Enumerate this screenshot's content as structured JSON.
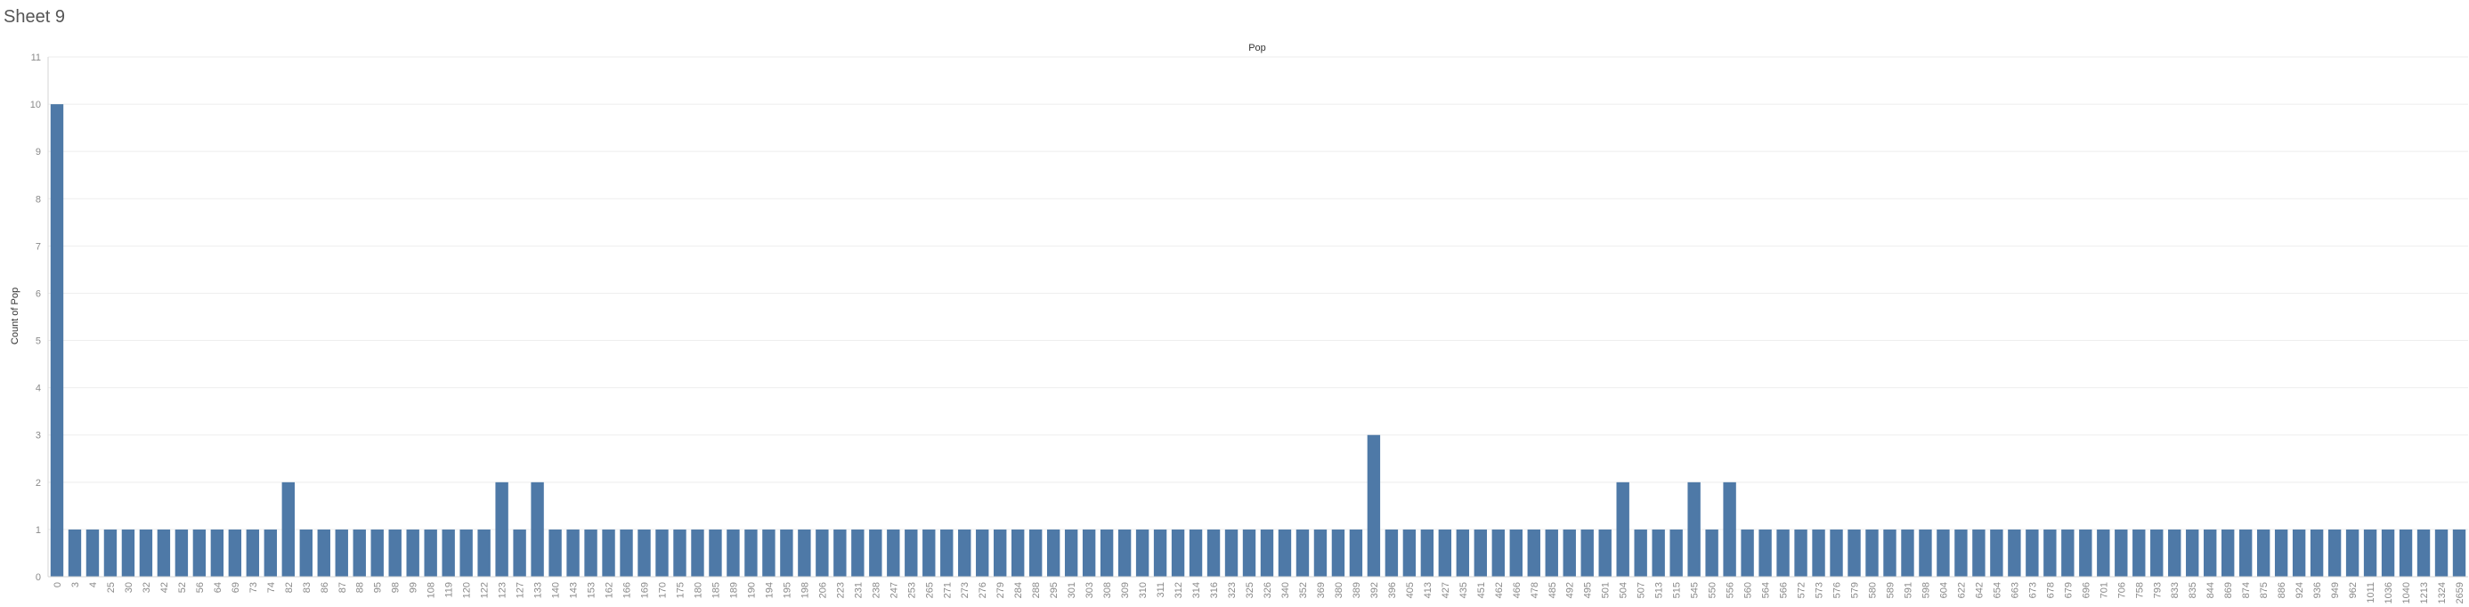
{
  "sheet": {
    "title": "Sheet 9"
  },
  "colors": {
    "bar": "#4e79a7",
    "grid": "#eeeeee",
    "axis": "#d6d6d6"
  },
  "chart_data": {
    "type": "bar",
    "title": "Pop",
    "xlabel": "",
    "ylabel": "Count of Pop",
    "ylim": [
      0,
      11
    ],
    "yticks": [
      0,
      1,
      2,
      3,
      4,
      5,
      6,
      7,
      8,
      9,
      10,
      11
    ],
    "grid": true,
    "categories": [
      "0",
      "3",
      "4",
      "25",
      "30",
      "32",
      "42",
      "52",
      "56",
      "64",
      "69",
      "73",
      "74",
      "82",
      "83",
      "86",
      "87",
      "88",
      "95",
      "98",
      "99",
      "108",
      "119",
      "120",
      "122",
      "123",
      "127",
      "133",
      "140",
      "143",
      "153",
      "162",
      "166",
      "169",
      "170",
      "175",
      "180",
      "185",
      "189",
      "190",
      "194",
      "195",
      "198",
      "206",
      "223",
      "231",
      "238",
      "247",
      "253",
      "265",
      "271",
      "273",
      "276",
      "279",
      "284",
      "288",
      "295",
      "301",
      "303",
      "308",
      "309",
      "310",
      "311",
      "312",
      "314",
      "316",
      "323",
      "325",
      "326",
      "340",
      "352",
      "369",
      "380",
      "389",
      "392",
      "396",
      "405",
      "413",
      "427",
      "435",
      "451",
      "462",
      "466",
      "478",
      "485",
      "492",
      "495",
      "501",
      "504",
      "507",
      "513",
      "515",
      "545",
      "550",
      "556",
      "560",
      "564",
      "566",
      "572",
      "573",
      "576",
      "579",
      "580",
      "589",
      "591",
      "598",
      "604",
      "622",
      "642",
      "654",
      "663",
      "673",
      "678",
      "679",
      "696",
      "701",
      "706",
      "758",
      "793",
      "833",
      "835",
      "844",
      "869",
      "874",
      "875",
      "886",
      "924",
      "936",
      "949",
      "962",
      "1011",
      "1036",
      "1040",
      "1213",
      "1324",
      "2659"
    ],
    "values": [
      10,
      1,
      1,
      1,
      1,
      1,
      1,
      1,
      1,
      1,
      1,
      1,
      1,
      2,
      1,
      1,
      1,
      1,
      1,
      1,
      1,
      1,
      1,
      1,
      1,
      2,
      1,
      2,
      1,
      1,
      1,
      1,
      1,
      1,
      1,
      1,
      1,
      1,
      1,
      1,
      1,
      1,
      1,
      1,
      1,
      1,
      1,
      1,
      1,
      1,
      1,
      1,
      1,
      1,
      1,
      1,
      1,
      1,
      1,
      1,
      1,
      1,
      1,
      1,
      1,
      1,
      1,
      1,
      1,
      1,
      1,
      1,
      1,
      1,
      3,
      1,
      1,
      1,
      1,
      1,
      1,
      1,
      1,
      1,
      1,
      1,
      1,
      1,
      2,
      1,
      1,
      1,
      2,
      1,
      2,
      1,
      1,
      1,
      1,
      1,
      1,
      1,
      1,
      1,
      1,
      1,
      1,
      1,
      1,
      1,
      1,
      1,
      1,
      1,
      1,
      1,
      1,
      1,
      1,
      1,
      1,
      1,
      1,
      1,
      1,
      1,
      1,
      1,
      1,
      1,
      1,
      1,
      1,
      1,
      1,
      1
    ]
  }
}
